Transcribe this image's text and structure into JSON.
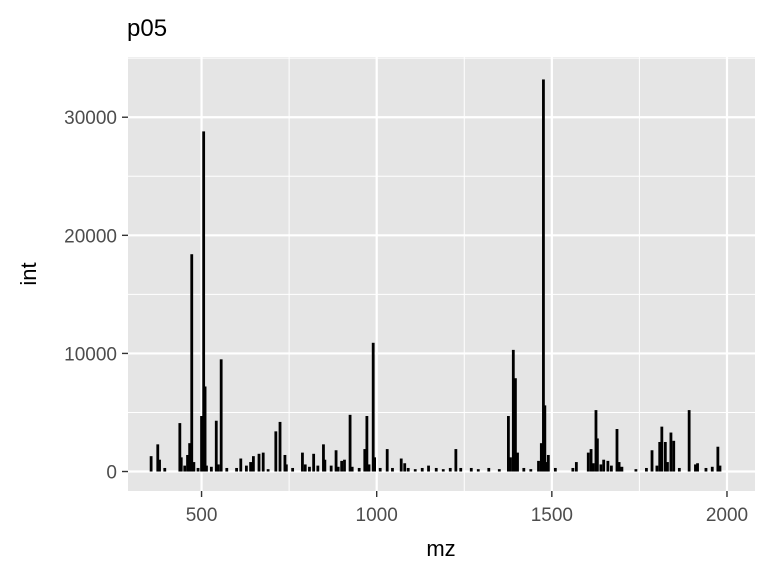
{
  "chart_data": {
    "type": "bar",
    "title": "p05",
    "xlabel": "mz",
    "ylabel": "int",
    "xlim": [
      290,
      2080
    ],
    "ylim": [
      -1650,
      35100
    ],
    "xticks": [
      500,
      1000,
      1500,
      2000
    ],
    "yticks": [
      0,
      10000,
      20000,
      30000
    ],
    "xtick_labels": [
      "500",
      "1000",
      "1500",
      "2000"
    ],
    "ytick_labels": [
      "0",
      "10000",
      "20000",
      "30000"
    ],
    "grid": true,
    "legend": "none",
    "colors": {
      "panel": "#e5e5e5",
      "grid": "#ffffff",
      "bar": "#000000",
      "text": "#4d4d4d"
    },
    "peaks": [
      {
        "x": 356,
        "y": 1300
      },
      {
        "x": 375,
        "y": 2300
      },
      {
        "x": 380,
        "y": 1000
      },
      {
        "x": 395,
        "y": 300
      },
      {
        "x": 438,
        "y": 4100
      },
      {
        "x": 442,
        "y": 1200
      },
      {
        "x": 452,
        "y": 500
      },
      {
        "x": 460,
        "y": 1400
      },
      {
        "x": 466,
        "y": 2400
      },
      {
        "x": 472,
        "y": 18400
      },
      {
        "x": 478,
        "y": 800
      },
      {
        "x": 490,
        "y": 300
      },
      {
        "x": 500,
        "y": 4700
      },
      {
        "x": 506,
        "y": 28800
      },
      {
        "x": 510,
        "y": 7200
      },
      {
        "x": 514,
        "y": 500
      },
      {
        "x": 528,
        "y": 400
      },
      {
        "x": 542,
        "y": 4300
      },
      {
        "x": 548,
        "y": 600
      },
      {
        "x": 556,
        "y": 9500
      },
      {
        "x": 572,
        "y": 300
      },
      {
        "x": 600,
        "y": 300
      },
      {
        "x": 612,
        "y": 1100
      },
      {
        "x": 628,
        "y": 500
      },
      {
        "x": 640,
        "y": 800
      },
      {
        "x": 648,
        "y": 1300
      },
      {
        "x": 664,
        "y": 1500
      },
      {
        "x": 676,
        "y": 1600
      },
      {
        "x": 690,
        "y": 200
      },
      {
        "x": 712,
        "y": 3400
      },
      {
        "x": 724,
        "y": 4200
      },
      {
        "x": 738,
        "y": 1400
      },
      {
        "x": 742,
        "y": 600
      },
      {
        "x": 760,
        "y": 300
      },
      {
        "x": 788,
        "y": 1600
      },
      {
        "x": 796,
        "y": 600
      },
      {
        "x": 808,
        "y": 400
      },
      {
        "x": 820,
        "y": 1500
      },
      {
        "x": 832,
        "y": 500
      },
      {
        "x": 848,
        "y": 2300
      },
      {
        "x": 852,
        "y": 1000
      },
      {
        "x": 870,
        "y": 500
      },
      {
        "x": 884,
        "y": 1800
      },
      {
        "x": 890,
        "y": 400
      },
      {
        "x": 900,
        "y": 900
      },
      {
        "x": 908,
        "y": 1000
      },
      {
        "x": 924,
        "y": 4800
      },
      {
        "x": 930,
        "y": 400
      },
      {
        "x": 950,
        "y": 300
      },
      {
        "x": 966,
        "y": 1900
      },
      {
        "x": 972,
        "y": 4700
      },
      {
        "x": 978,
        "y": 600
      },
      {
        "x": 990,
        "y": 10900
      },
      {
        "x": 994,
        "y": 1200
      },
      {
        "x": 1010,
        "y": 300
      },
      {
        "x": 1030,
        "y": 1900
      },
      {
        "x": 1045,
        "y": 300
      },
      {
        "x": 1070,
        "y": 1100
      },
      {
        "x": 1080,
        "y": 700
      },
      {
        "x": 1090,
        "y": 300
      },
      {
        "x": 1110,
        "y": 200
      },
      {
        "x": 1130,
        "y": 300
      },
      {
        "x": 1148,
        "y": 500
      },
      {
        "x": 1170,
        "y": 300
      },
      {
        "x": 1190,
        "y": 200
      },
      {
        "x": 1210,
        "y": 300
      },
      {
        "x": 1226,
        "y": 1900
      },
      {
        "x": 1240,
        "y": 300
      },
      {
        "x": 1270,
        "y": 300
      },
      {
        "x": 1290,
        "y": 200
      },
      {
        "x": 1320,
        "y": 300
      },
      {
        "x": 1350,
        "y": 200
      },
      {
        "x": 1376,
        "y": 4700
      },
      {
        "x": 1382,
        "y": 1200
      },
      {
        "x": 1390,
        "y": 10300
      },
      {
        "x": 1396,
        "y": 7900
      },
      {
        "x": 1402,
        "y": 1600
      },
      {
        "x": 1420,
        "y": 300
      },
      {
        "x": 1440,
        "y": 200
      },
      {
        "x": 1462,
        "y": 900
      },
      {
        "x": 1470,
        "y": 2400
      },
      {
        "x": 1476,
        "y": 33200
      },
      {
        "x": 1480,
        "y": 5600
      },
      {
        "x": 1486,
        "y": 800
      },
      {
        "x": 1490,
        "y": 1400
      },
      {
        "x": 1510,
        "y": 300
      },
      {
        "x": 1560,
        "y": 300
      },
      {
        "x": 1570,
        "y": 800
      },
      {
        "x": 1604,
        "y": 1600
      },
      {
        "x": 1612,
        "y": 1900
      },
      {
        "x": 1618,
        "y": 700
      },
      {
        "x": 1626,
        "y": 5200
      },
      {
        "x": 1630,
        "y": 2800
      },
      {
        "x": 1640,
        "y": 600
      },
      {
        "x": 1648,
        "y": 1000
      },
      {
        "x": 1660,
        "y": 900
      },
      {
        "x": 1670,
        "y": 500
      },
      {
        "x": 1686,
        "y": 3600
      },
      {
        "x": 1692,
        "y": 800
      },
      {
        "x": 1700,
        "y": 400
      },
      {
        "x": 1740,
        "y": 200
      },
      {
        "x": 1770,
        "y": 300
      },
      {
        "x": 1786,
        "y": 1800
      },
      {
        "x": 1800,
        "y": 500
      },
      {
        "x": 1808,
        "y": 2500
      },
      {
        "x": 1814,
        "y": 3800
      },
      {
        "x": 1824,
        "y": 2500
      },
      {
        "x": 1830,
        "y": 800
      },
      {
        "x": 1840,
        "y": 3300
      },
      {
        "x": 1848,
        "y": 2600
      },
      {
        "x": 1864,
        "y": 300
      },
      {
        "x": 1892,
        "y": 5200
      },
      {
        "x": 1910,
        "y": 600
      },
      {
        "x": 1916,
        "y": 700
      },
      {
        "x": 1940,
        "y": 300
      },
      {
        "x": 1958,
        "y": 400
      },
      {
        "x": 1974,
        "y": 2100
      },
      {
        "x": 1980,
        "y": 500
      }
    ]
  }
}
